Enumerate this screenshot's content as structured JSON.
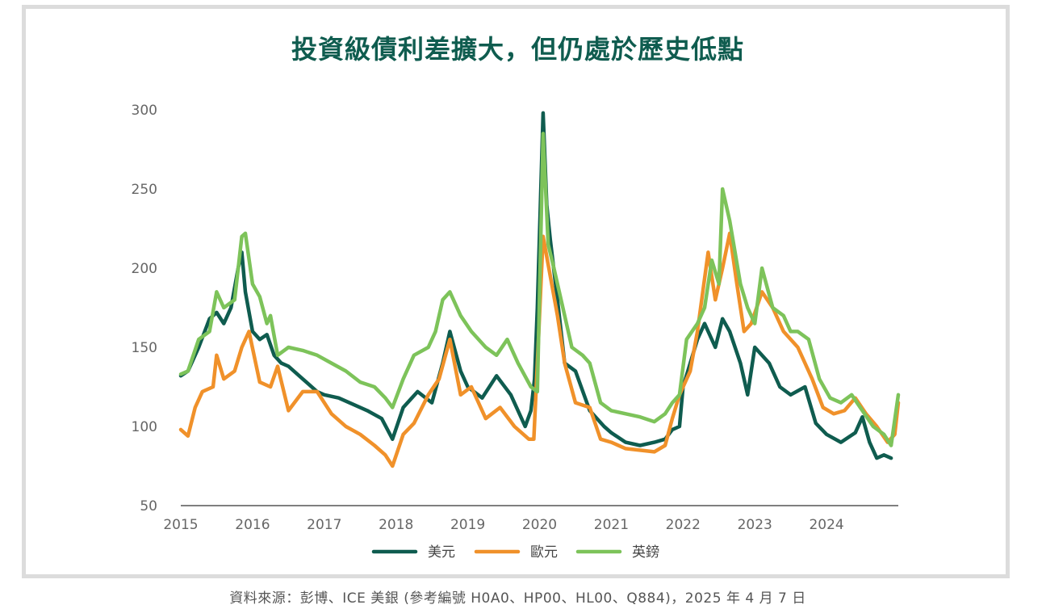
{
  "colors": {
    "usd": "#0f5c4f",
    "eur": "#f0912a",
    "gbp": "#7dc35a",
    "title": "#0f5c4f",
    "axis": "#555555",
    "frame": "#dcdcdc"
  },
  "chart_data": {
    "type": "line",
    "title": "投資級債利差擴大，但仍處於歷史低點",
    "source": "資料來源：彭博、ICE 美銀 (參考編號 H0A0、HP00、HL00、Q884)，2025 年 4 月 7 日",
    "xlabel": "",
    "ylabel": "",
    "ylim": [
      50,
      300
    ],
    "xlim": [
      2015,
      2025
    ],
    "yticks": [
      50,
      100,
      150,
      200,
      250,
      300
    ],
    "xticks": [
      2015,
      2016,
      2017,
      2018,
      2019,
      2020,
      2021,
      2022,
      2023,
      2024
    ],
    "grid": false,
    "legend": "bottom-center",
    "series": [
      {
        "name": "美元",
        "color": "#0f5c4f",
        "x": [
          2015.0,
          2015.1,
          2015.25,
          2015.4,
          2015.5,
          2015.6,
          2015.7,
          2015.8,
          2015.85,
          2015.9,
          2016.0,
          2016.1,
          2016.2,
          2016.3,
          2016.4,
          2016.5,
          2016.7,
          2016.9,
          2017.0,
          2017.2,
          2017.4,
          2017.6,
          2017.8,
          2017.95,
          2018.1,
          2018.3,
          2018.5,
          2018.65,
          2018.75,
          2018.9,
          2019.0,
          2019.2,
          2019.4,
          2019.6,
          2019.8,
          2019.88,
          2019.93,
          2019.97,
          2020.05,
          2020.1,
          2020.15,
          2020.25,
          2020.35,
          2020.5,
          2020.7,
          2020.9,
          2021.0,
          2021.2,
          2021.4,
          2021.6,
          2021.75,
          2021.85,
          2021.95,
          2022.0,
          2022.1,
          2022.2,
          2022.3,
          2022.45,
          2022.55,
          2022.65,
          2022.8,
          2022.9,
          2023.0,
          2023.2,
          2023.35,
          2023.5,
          2023.7,
          2023.85,
          2024.0,
          2024.2,
          2024.4,
          2024.5,
          2024.6,
          2024.7,
          2024.8,
          2024.9
        ],
        "values": [
          132,
          135,
          150,
          168,
          172,
          165,
          175,
          200,
          210,
          185,
          160,
          155,
          158,
          145,
          140,
          138,
          130,
          122,
          120,
          118,
          114,
          110,
          105,
          92,
          112,
          122,
          115,
          140,
          160,
          135,
          125,
          118,
          132,
          120,
          100,
          110,
          130,
          175,
          298,
          240,
          218,
          180,
          140,
          135,
          110,
          100,
          96,
          90,
          88,
          90,
          92,
          98,
          100,
          125,
          140,
          155,
          165,
          150,
          168,
          160,
          140,
          120,
          150,
          140,
          125,
          120,
          125,
          102,
          95,
          90,
          96,
          106,
          90,
          80,
          82,
          80
        ]
      },
      {
        "name": "歐元",
        "color": "#f0912a",
        "x": [
          2015.0,
          2015.1,
          2015.2,
          2015.3,
          2015.45,
          2015.5,
          2015.6,
          2015.75,
          2015.85,
          2015.95,
          2016.1,
          2016.25,
          2016.35,
          2016.5,
          2016.7,
          2016.9,
          2017.1,
          2017.3,
          2017.5,
          2017.7,
          2017.85,
          2017.95,
          2018.1,
          2018.25,
          2018.45,
          2018.6,
          2018.75,
          2018.9,
          2019.05,
          2019.25,
          2019.45,
          2019.65,
          2019.85,
          2019.92,
          2019.97,
          2020.05,
          2020.15,
          2020.25,
          2020.35,
          2020.5,
          2020.7,
          2020.85,
          2021.0,
          2021.2,
          2021.4,
          2021.6,
          2021.75,
          2021.85,
          2021.95,
          2022.1,
          2022.2,
          2022.35,
          2022.45,
          2022.55,
          2022.65,
          2022.75,
          2022.85,
          2022.95,
          2023.1,
          2023.25,
          2023.4,
          2023.6,
          2023.8,
          2023.95,
          2024.1,
          2024.25,
          2024.4,
          2024.55,
          2024.7,
          2024.85,
          2024.95,
          2025.0
        ],
        "values": [
          98,
          94,
          112,
          122,
          125,
          145,
          130,
          135,
          150,
          160,
          128,
          125,
          138,
          110,
          122,
          122,
          108,
          100,
          95,
          88,
          82,
          75,
          95,
          102,
          120,
          130,
          155,
          120,
          125,
          105,
          112,
          100,
          92,
          92,
          140,
          220,
          195,
          170,
          140,
          115,
          112,
          92,
          90,
          86,
          85,
          84,
          88,
          105,
          120,
          135,
          160,
          210,
          180,
          200,
          222,
          190,
          160,
          165,
          185,
          175,
          160,
          150,
          130,
          112,
          108,
          110,
          118,
          108,
          100,
          90,
          95,
          115
        ]
      },
      {
        "name": "英鎊",
        "color": "#7dc35a",
        "x": [
          2015.0,
          2015.1,
          2015.25,
          2015.4,
          2015.5,
          2015.6,
          2015.75,
          2015.85,
          2015.9,
          2016.0,
          2016.1,
          2016.2,
          2016.25,
          2016.35,
          2016.5,
          2016.7,
          2016.9,
          2017.1,
          2017.3,
          2017.5,
          2017.7,
          2017.85,
          2017.95,
          2018.1,
          2018.25,
          2018.45,
          2018.55,
          2018.65,
          2018.75,
          2018.9,
          2019.05,
          2019.25,
          2019.4,
          2019.55,
          2019.7,
          2019.88,
          2019.97,
          2020.05,
          2020.12,
          2020.2,
          2020.3,
          2020.45,
          2020.6,
          2020.7,
          2020.85,
          2021.0,
          2021.2,
          2021.4,
          2021.6,
          2021.75,
          2021.85,
          2021.95,
          2022.05,
          2022.2,
          2022.3,
          2022.4,
          2022.5,
          2022.55,
          2022.65,
          2022.8,
          2022.9,
          2023.0,
          2023.1,
          2023.25,
          2023.4,
          2023.5,
          2023.6,
          2023.75,
          2023.9,
          2024.05,
          2024.2,
          2024.35,
          2024.5,
          2024.65,
          2024.8,
          2024.9,
          2025.0
        ],
        "values": [
          133,
          135,
          155,
          160,
          185,
          175,
          180,
          220,
          222,
          190,
          182,
          165,
          170,
          145,
          150,
          148,
          145,
          140,
          135,
          128,
          125,
          118,
          112,
          130,
          145,
          150,
          160,
          180,
          185,
          170,
          160,
          150,
          145,
          155,
          140,
          125,
          122,
          285,
          215,
          200,
          180,
          150,
          145,
          140,
          115,
          110,
          108,
          106,
          103,
          108,
          115,
          120,
          155,
          165,
          175,
          205,
          190,
          250,
          230,
          190,
          175,
          165,
          200,
          175,
          170,
          160,
          160,
          155,
          130,
          118,
          115,
          120,
          110,
          100,
          95,
          88,
          120
        ]
      }
    ]
  }
}
